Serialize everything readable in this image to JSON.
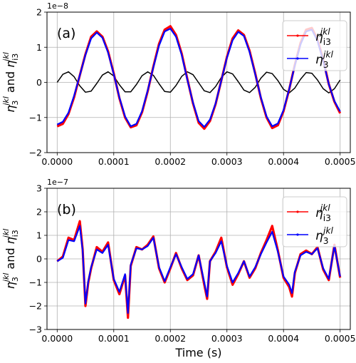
{
  "figure": {
    "xlabel": "Time (s)"
  },
  "chart_data": [
    {
      "type": "line",
      "panel_label": "(a)",
      "ylabel": "η3jkl and ηi3jkl",
      "y_offset_text": "1e−8",
      "xlim": [
        -1.8e-05,
        0.000518
      ],
      "ylim": [
        -2,
        2
      ],
      "x_ticks": [
        "0.0000",
        "0.0001",
        "0.0002",
        "0.0003",
        "0.0004",
        "0.0005"
      ],
      "y_ticks": [
        "−2",
        "−1",
        "0",
        "1",
        "2"
      ],
      "grid": true,
      "legend_position": "top-right",
      "x": [
        0,
        1e-05,
        2e-05,
        3e-05,
        4e-05,
        5e-05,
        6e-05,
        7e-05,
        8e-05,
        9e-05,
        0.0001,
        0.00011,
        0.00012,
        0.00013,
        0.00014,
        0.00015,
        0.00016,
        0.00017,
        0.00018,
        0.00019,
        0.0002,
        0.00021,
        0.00022,
        0.00023,
        0.00024,
        0.00025,
        0.00026,
        0.00027,
        0.00028,
        0.00029,
        0.0003,
        0.00031,
        0.00032,
        0.00033,
        0.00034,
        0.00035,
        0.00036,
        0.00037,
        0.00038,
        0.00039,
        0.0004,
        0.00041,
        0.00042,
        0.00043,
        0.00044,
        0.00045,
        0.00046,
        0.00047,
        0.00048,
        0.00049,
        0.0005
      ],
      "series": [
        {
          "name": "ηi3jkl",
          "color": "#ff0000",
          "values": [
            -1.25,
            -1.18,
            -0.9,
            -0.42,
            0.2,
            0.8,
            1.3,
            1.45,
            1.3,
            0.88,
            0.25,
            -0.45,
            -1.0,
            -1.28,
            -1.22,
            -0.85,
            -0.25,
            0.45,
            1.1,
            1.5,
            1.6,
            1.35,
            0.82,
            0.1,
            -0.6,
            -1.15,
            -1.32,
            -1.1,
            -0.62,
            0.05,
            0.72,
            1.25,
            1.48,
            1.35,
            0.9,
            0.25,
            -0.45,
            -1.0,
            -1.3,
            -1.22,
            -0.82,
            -0.2,
            0.5,
            1.12,
            1.5,
            1.55,
            1.22,
            0.65,
            -0.05,
            -0.55,
            -0.88
          ]
        },
        {
          "name": "η3jkl",
          "color": "#0000ff",
          "values": [
            -1.2,
            -1.12,
            -0.86,
            -0.38,
            0.2,
            0.78,
            1.25,
            1.42,
            1.27,
            0.85,
            0.23,
            -0.43,
            -0.97,
            -1.25,
            -1.18,
            -0.82,
            -0.23,
            0.43,
            1.05,
            1.45,
            1.53,
            1.3,
            0.78,
            0.08,
            -0.58,
            -1.1,
            -1.27,
            -1.06,
            -0.6,
            0.05,
            0.7,
            1.2,
            1.44,
            1.32,
            0.87,
            0.23,
            -0.43,
            -0.97,
            -1.25,
            -1.17,
            -0.79,
            -0.19,
            0.48,
            1.08,
            1.45,
            1.5,
            1.18,
            0.62,
            -0.05,
            -0.53,
            -0.83
          ]
        },
        {
          "color": "#000000",
          "values": [
            0,
            0.23,
            0.3,
            0.16,
            -0.1,
            -0.28,
            -0.25,
            -0.03,
            0.21,
            0.3,
            0.18,
            -0.07,
            -0.27,
            -0.27,
            -0.06,
            0.19,
            0.3,
            0.2,
            -0.04,
            -0.26,
            -0.28,
            -0.09,
            0.17,
            0.3,
            0.22,
            -0.01,
            -0.24,
            -0.29,
            -0.12,
            0.14,
            0.3,
            0.24,
            0.02,
            -0.22,
            -0.29,
            -0.14,
            0.12,
            0.29,
            0.25,
            0.05,
            -0.2,
            -0.3,
            -0.16,
            0.09,
            0.28,
            0.26,
            0.07,
            -0.18,
            -0.3,
            -0.18,
            0.07
          ]
        }
      ]
    },
    {
      "type": "line",
      "panel_label": "(b)",
      "ylabel": "η3jkl and ηi3jkl",
      "y_offset_text": "1e−7",
      "xlim": [
        -1.8e-05,
        0.000518
      ],
      "ylim": [
        -3,
        3
      ],
      "x_ticks": [
        "0.0000",
        "0.0001",
        "0.0002",
        "0.0003",
        "0.0004",
        "0.0005"
      ],
      "y_ticks": [
        "−3",
        "−2",
        "−1",
        "0",
        "1",
        "2",
        "3"
      ],
      "grid": true,
      "legend_position": "top-right",
      "x": [
        0,
        1e-05,
        2e-05,
        3e-05,
        4e-05,
        4.5e-05,
        5e-05,
        5.5e-05,
        6e-05,
        7e-05,
        8e-05,
        9e-05,
        0.0001,
        0.00011,
        0.00012,
        0.000125,
        0.00013,
        0.00014,
        0.00015,
        0.00016,
        0.00017,
        0.00018,
        0.00019,
        0.0002,
        0.00021,
        0.00022,
        0.00023,
        0.00024,
        0.00025,
        0.00026,
        0.000265,
        0.00027,
        0.00028,
        0.00029,
        0.0003,
        0.00031,
        0.00032,
        0.00033,
        0.00034,
        0.00035,
        0.00036,
        0.00037,
        0.00038,
        0.00039,
        0.0004,
        0.00041,
        0.000415,
        0.00042,
        0.00043,
        0.00044,
        0.00045,
        0.00046,
        0.00047,
        0.00048,
        0.00049,
        0.0005
      ],
      "series": [
        {
          "name": "ηi3jkl",
          "color": "#ff0000",
          "values": [
            -0.1,
            0.1,
            0.9,
            0.8,
            1.6,
            0.4,
            -2.0,
            -1.0,
            -0.4,
            0.5,
            0.3,
            0.7,
            -0.9,
            -1.5,
            -0.7,
            -2.5,
            -0.3,
            0.5,
            0.4,
            0.6,
            0.95,
            -0.4,
            -1.0,
            -0.4,
            0.25,
            -0.4,
            -0.9,
            -0.7,
            0.15,
            -1.1,
            -1.7,
            -0.1,
            0.3,
            0.9,
            -0.35,
            -1.1,
            -0.65,
            -0.1,
            -0.8,
            -0.4,
            0.25,
            0.8,
            1.4,
            0.35,
            -0.8,
            -1.2,
            -1.6,
            -0.6,
            0.2,
            0.35,
            0.2,
            0.5,
            -0.45,
            -0.9,
            0.6,
            -0.8
          ]
        },
        {
          "name": "η3jkl",
          "color": "#0000ff",
          "values": [
            -0.1,
            0.05,
            0.8,
            0.75,
            1.4,
            0.35,
            -1.9,
            -0.95,
            -0.35,
            0.4,
            0.25,
            0.6,
            -0.85,
            -1.4,
            -0.65,
            -2.3,
            -0.25,
            0.45,
            0.4,
            0.55,
            0.9,
            -0.35,
            -0.95,
            -0.35,
            0.2,
            -0.35,
            -0.85,
            -0.65,
            0.15,
            -1.0,
            -1.6,
            -0.1,
            0.25,
            0.75,
            -0.3,
            -1.0,
            -0.6,
            -0.1,
            -0.75,
            -0.35,
            0.2,
            0.7,
            1.15,
            0.3,
            -0.75,
            -1.1,
            -1.45,
            -0.55,
            0.15,
            0.3,
            0.2,
            0.45,
            -0.4,
            -0.85,
            0.55,
            -0.75
          ]
        }
      ]
    }
  ]
}
